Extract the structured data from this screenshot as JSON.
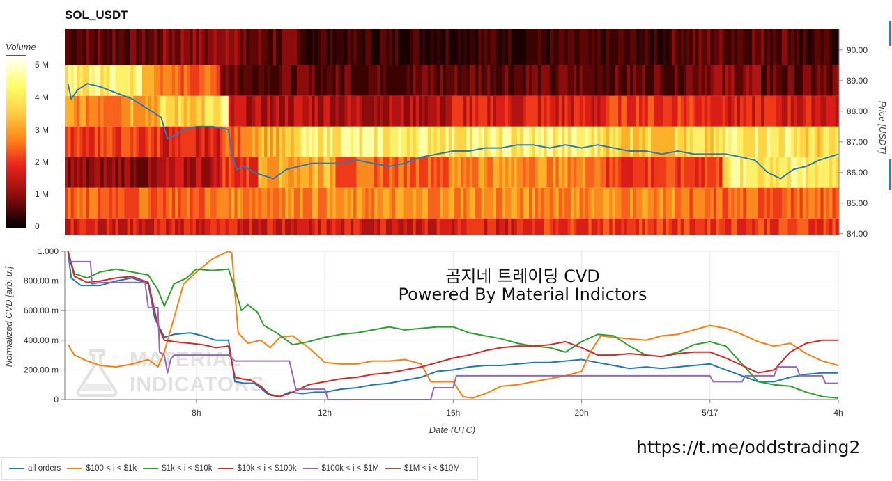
{
  "header": {
    "title": "SOL_USDT"
  },
  "colorbar": {
    "title": "Volume",
    "ticks": [
      "5 M",
      "4 M",
      "3 M",
      "2 M",
      "1 M",
      "0"
    ]
  },
  "watermark": {
    "line1": "MATERIAL",
    "line2": "INDICATORS"
  },
  "annotation": {
    "line1": "곰지네 트레이딩 CVD",
    "line2": "Powered By Material Indictors"
  },
  "footer": {
    "link": "https://t.me/oddstrading2"
  },
  "legend": {
    "items": [
      {
        "label": "all orders",
        "color": "#1f77b4"
      },
      {
        "label": "$100 < i < $1k",
        "color": "#ff7f0e"
      },
      {
        "label": "$1k < i < $10k",
        "color": "#2ca02c"
      },
      {
        "label": "$10k < i < $100k",
        "color": "#d62728"
      },
      {
        "label": "$100k < i < $1M",
        "color": "#9467bd"
      },
      {
        "label": "$1M < i < $10M",
        "color": "#8c564b"
      }
    ]
  },
  "chart_data": [
    {
      "type": "heatmap",
      "title": "SOL_USDT",
      "ylabel": "Price [USDT]",
      "y_ticks": [
        "90.00",
        "89.00",
        "88.00",
        "87.00",
        "86.00",
        "85.00",
        "84.00"
      ],
      "ylim": [
        83.95,
        90.7
      ],
      "colorbar_label": "Volume",
      "colorbar_range": [
        0,
        5300000
      ],
      "price_bands": [
        89.5,
        88.5,
        87.5,
        86.5,
        85.5,
        84.5,
        83.95
      ],
      "price_line": {
        "color": "#2b7bb9",
        "x_hours": [
          4.0,
          4.1,
          4.3,
          4.6,
          5.0,
          5.5,
          6.0,
          6.3,
          6.6,
          6.9,
          7.1,
          7.3,
          7.6,
          8.0,
          8.5,
          9.0,
          9.1,
          9.25,
          9.5,
          9.8,
          10.1,
          10.4,
          10.8,
          11.2,
          11.6,
          12.0,
          12.5,
          13.0,
          13.5,
          14.0,
          14.5,
          15.0,
          15.5,
          16.0,
          16.5,
          17.0,
          17.5,
          18.0,
          18.5,
          19.0,
          19.5,
          20.0,
          20.5,
          21.0,
          21.5,
          22.0,
          22.5,
          23.0,
          23.5,
          24.0,
          24.5,
          25.0,
          25.4,
          25.8,
          26.2,
          26.6,
          27.0,
          27.4,
          27.7,
          28.0
        ],
        "y_price": [
          88.9,
          88.4,
          88.7,
          88.9,
          88.8,
          88.6,
          88.4,
          88.2,
          88.0,
          87.8,
          87.1,
          87.2,
          87.4,
          87.5,
          87.5,
          87.4,
          86.6,
          86.1,
          86.2,
          86.0,
          85.9,
          85.8,
          86.1,
          86.2,
          86.3,
          86.3,
          86.3,
          86.4,
          86.3,
          86.2,
          86.3,
          86.5,
          86.6,
          86.7,
          86.7,
          86.8,
          86.8,
          86.9,
          86.9,
          86.8,
          86.9,
          86.8,
          86.9,
          86.8,
          86.7,
          86.7,
          86.6,
          86.7,
          86.6,
          86.6,
          86.6,
          86.5,
          86.4,
          86.0,
          85.8,
          86.1,
          86.2,
          86.4,
          86.5,
          86.6
        ]
      }
    },
    {
      "type": "line",
      "xlabel": "Date (UTC)",
      "ylabel": "Normalized CVD [arb. u.]",
      "x_ticks": [
        "8h",
        "12h",
        "16h",
        "20h",
        "5/17",
        "4h"
      ],
      "x_tick_hours": [
        8,
        12,
        16,
        20,
        24,
        28
      ],
      "xlim_hours": [
        3.9,
        28
      ],
      "y_ticks": [
        "0",
        "200.00 m",
        "400.00 m",
        "600.00 m",
        "800.00 m",
        "1.000"
      ],
      "ylim": [
        0,
        1.0
      ],
      "grid": true,
      "legend": "bottom",
      "series": [
        {
          "name": "all orders",
          "color": "#1f77b4",
          "x": [
            4.0,
            4.1,
            4.4,
            5.0,
            5.5,
            6.0,
            6.5,
            6.7,
            7.0,
            7.3,
            7.8,
            8.2,
            8.6,
            9.0,
            9.2,
            9.5,
            9.8,
            10.0,
            10.2,
            10.6,
            10.9,
            11.3,
            11.7,
            12.0,
            12.5,
            13.0,
            13.5,
            14.0,
            14.5,
            15.0,
            15.5,
            16.0,
            16.5,
            17.0,
            17.5,
            18.0,
            18.5,
            19.0,
            19.5,
            20.0,
            20.5,
            21.0,
            21.5,
            22.0,
            22.5,
            23.0,
            23.5,
            24.0,
            24.5,
            25.0,
            25.5,
            26.0,
            26.5,
            27.0,
            27.5,
            28.0
          ],
          "y": [
            1.0,
            0.82,
            0.77,
            0.77,
            0.8,
            0.82,
            0.78,
            0.55,
            0.42,
            0.44,
            0.45,
            0.43,
            0.4,
            0.4,
            0.12,
            0.11,
            0.11,
            0.08,
            0.04,
            0.02,
            0.05,
            0.04,
            0.05,
            0.05,
            0.07,
            0.08,
            0.1,
            0.11,
            0.13,
            0.15,
            0.19,
            0.2,
            0.22,
            0.23,
            0.23,
            0.24,
            0.25,
            0.25,
            0.26,
            0.27,
            0.25,
            0.23,
            0.21,
            0.22,
            0.21,
            0.22,
            0.23,
            0.24,
            0.2,
            0.16,
            0.12,
            0.12,
            0.15,
            0.17,
            0.18,
            0.18
          ]
        },
        {
          "name": "$100 < i < $1k",
          "color": "#ff7f0e",
          "x": [
            4.0,
            4.2,
            4.6,
            5.0,
            5.5,
            6.0,
            6.5,
            6.8,
            7.0,
            7.3,
            7.6,
            8.0,
            8.5,
            9.0,
            9.1,
            9.3,
            9.6,
            10.0,
            10.3,
            10.6,
            11.0,
            11.5,
            12.0,
            12.5,
            13.0,
            13.5,
            14.0,
            14.5,
            15.0,
            15.3,
            15.6,
            16.0,
            16.3,
            16.6,
            17.0,
            17.5,
            18.0,
            18.5,
            19.0,
            19.5,
            20.0,
            20.3,
            20.6,
            21.0,
            21.5,
            22.0,
            22.5,
            23.0,
            23.5,
            24.0,
            24.5,
            25.0,
            25.5,
            26.0,
            26.5,
            27.0,
            27.5,
            28.0
          ],
          "y": [
            0.37,
            0.3,
            0.26,
            0.23,
            0.22,
            0.24,
            0.27,
            0.22,
            0.32,
            0.55,
            0.78,
            0.86,
            0.95,
            1.0,
            0.99,
            0.45,
            0.38,
            0.4,
            0.35,
            0.42,
            0.43,
            0.35,
            0.25,
            0.24,
            0.24,
            0.26,
            0.26,
            0.27,
            0.24,
            0.12,
            0.12,
            0.12,
            0.02,
            0.01,
            0.04,
            0.09,
            0.1,
            0.12,
            0.14,
            0.16,
            0.19,
            0.33,
            0.43,
            0.42,
            0.41,
            0.4,
            0.43,
            0.44,
            0.47,
            0.5,
            0.48,
            0.44,
            0.39,
            0.36,
            0.38,
            0.31,
            0.26,
            0.23
          ]
        },
        {
          "name": "$1k < i < $10k",
          "color": "#2ca02c",
          "x": [
            4.0,
            4.2,
            4.6,
            5.0,
            5.5,
            6.0,
            6.5,
            6.8,
            7.0,
            7.3,
            7.7,
            8.0,
            8.5,
            9.0,
            9.2,
            9.4,
            9.6,
            9.9,
            10.1,
            10.5,
            11.0,
            11.5,
            12.0,
            12.5,
            13.0,
            13.5,
            14.0,
            14.5,
            15.0,
            15.5,
            16.0,
            16.5,
            17.0,
            17.5,
            18.0,
            18.5,
            19.0,
            19.5,
            20.0,
            20.5,
            21.0,
            21.5,
            22.0,
            22.5,
            23.0,
            23.5,
            24.0,
            24.5,
            25.0,
            25.5,
            26.0,
            26.5,
            27.0,
            27.5,
            28.0
          ],
          "y": [
            1.0,
            0.85,
            0.82,
            0.86,
            0.88,
            0.86,
            0.84,
            0.74,
            0.63,
            0.78,
            0.82,
            0.88,
            0.87,
            0.88,
            0.75,
            0.6,
            0.64,
            0.59,
            0.5,
            0.45,
            0.37,
            0.39,
            0.42,
            0.44,
            0.45,
            0.47,
            0.49,
            0.47,
            0.48,
            0.49,
            0.49,
            0.45,
            0.43,
            0.41,
            0.38,
            0.36,
            0.35,
            0.32,
            0.39,
            0.44,
            0.43,
            0.36,
            0.3,
            0.29,
            0.32,
            0.37,
            0.39,
            0.36,
            0.24,
            0.12,
            0.1,
            0.09,
            0.05,
            0.02,
            0.01
          ]
        },
        {
          "name": "$10k < i < $100k",
          "color": "#d62728",
          "x": [
            4.0,
            4.2,
            4.6,
            5.0,
            5.5,
            6.0,
            6.5,
            6.8,
            7.0,
            7.3,
            7.8,
            8.2,
            8.6,
            9.0,
            9.2,
            9.4,
            9.7,
            10.0,
            10.3,
            10.6,
            11.0,
            11.5,
            12.0,
            12.5,
            13.0,
            13.5,
            14.0,
            14.5,
            15.0,
            15.5,
            16.0,
            16.5,
            17.0,
            17.5,
            18.0,
            18.5,
            19.0,
            19.5,
            20.0,
            20.5,
            21.0,
            21.5,
            22.0,
            22.5,
            23.0,
            23.5,
            24.0,
            24.5,
            25.0,
            25.5,
            26.0,
            26.5,
            27.0,
            27.5,
            28.0
          ],
          "y": [
            1.0,
            0.83,
            0.79,
            0.8,
            0.82,
            0.83,
            0.79,
            0.5,
            0.4,
            0.39,
            0.38,
            0.37,
            0.35,
            0.36,
            0.15,
            0.14,
            0.13,
            0.09,
            0.03,
            0.02,
            0.05,
            0.1,
            0.12,
            0.14,
            0.15,
            0.17,
            0.18,
            0.2,
            0.22,
            0.25,
            0.28,
            0.3,
            0.33,
            0.35,
            0.36,
            0.36,
            0.37,
            0.39,
            0.35,
            0.3,
            0.3,
            0.31,
            0.3,
            0.29,
            0.31,
            0.32,
            0.32,
            0.28,
            0.23,
            0.18,
            0.2,
            0.32,
            0.38,
            0.4,
            0.4
          ]
        },
        {
          "name": "$100k < i < $1M",
          "color": "#9467bd",
          "x": [
            4.0,
            4.1,
            4.3,
            4.7,
            4.75,
            5.0,
            5.5,
            6.0,
            6.4,
            6.5,
            6.8,
            6.85,
            7.0,
            7.1,
            7.2,
            7.3,
            7.5,
            8.0,
            8.5,
            9.0,
            9.2,
            9.5,
            10.0,
            10.5,
            10.9,
            11.1,
            12.0,
            12.1,
            15.0,
            15.3,
            15.4,
            15.8,
            16.0,
            16.1,
            19.0,
            20.0,
            21.0,
            22.0,
            23.0,
            24.0,
            24.1,
            25.0,
            25.1,
            26.0,
            26.1,
            26.7,
            26.8,
            27.5,
            27.6,
            28.0
          ],
          "y": [
            0.93,
            0.93,
            0.93,
            0.93,
            0.78,
            0.79,
            0.79,
            0.79,
            0.79,
            0.62,
            0.62,
            0.32,
            0.3,
            0.18,
            0.27,
            0.3,
            0.3,
            0.3,
            0.3,
            0.3,
            0.26,
            0.26,
            0.26,
            0.26,
            0.26,
            0.07,
            0.07,
            0.0,
            0.0,
            0.0,
            0.08,
            0.08,
            0.08,
            0.16,
            0.16,
            0.16,
            0.16,
            0.16,
            0.16,
            0.16,
            0.12,
            0.12,
            0.16,
            0.16,
            0.22,
            0.22,
            0.16,
            0.16,
            0.11,
            0.11
          ]
        },
        {
          "name": "$1M < i < $10M",
          "color": "#8c564b",
          "x": [],
          "y": []
        }
      ]
    }
  ]
}
